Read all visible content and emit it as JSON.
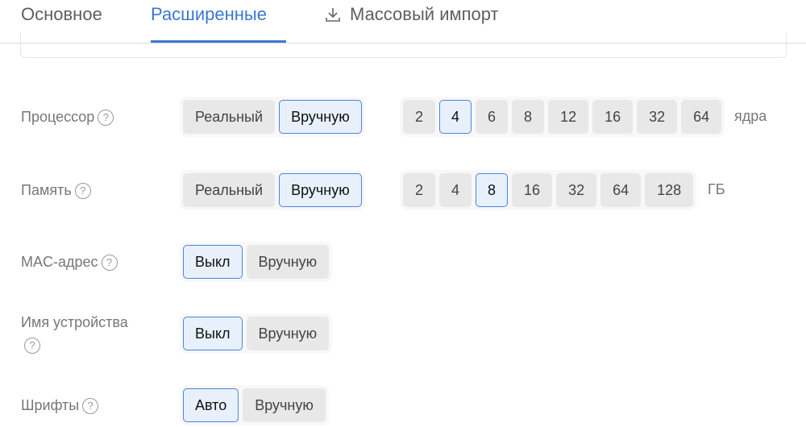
{
  "tabs": [
    {
      "label": "Основное"
    },
    {
      "label": "Расширенные",
      "active": true
    },
    {
      "label": "Массовый импорт",
      "icon": "download-icon"
    }
  ],
  "colors": {
    "accent": "#3a78d0",
    "selected_bg": "#e8f0fb",
    "option_bg": "#e8e8e8"
  },
  "rows": [
    {
      "id": "cpu",
      "label": "Процессор",
      "help": "?",
      "mode": {
        "options": [
          "Реальный",
          "Вручную"
        ],
        "selected": "Вручную"
      },
      "values": {
        "options": [
          "2",
          "4",
          "6",
          "8",
          "12",
          "16",
          "32",
          "64"
        ],
        "selected": "4",
        "unit": "ядра"
      }
    },
    {
      "id": "memory",
      "label": "Память",
      "help": "?",
      "mode": {
        "options": [
          "Реальный",
          "Вручную"
        ],
        "selected": "Вручную"
      },
      "values": {
        "options": [
          "2",
          "4",
          "8",
          "16",
          "32",
          "64",
          "128"
        ],
        "selected": "8",
        "unit": "ГБ"
      }
    },
    {
      "id": "mac",
      "label": "MAC-адрес",
      "help": "?",
      "mode": {
        "options": [
          "Выкл",
          "Вручную"
        ],
        "selected": "Выкл"
      }
    },
    {
      "id": "device-name",
      "label": "Имя устройства",
      "help": "?",
      "mode": {
        "options": [
          "Выкл",
          "Вручную"
        ],
        "selected": "Выкл"
      }
    },
    {
      "id": "fonts",
      "label": "Шрифты",
      "help": "?",
      "mode": {
        "options": [
          "Авто",
          "Вручную"
        ],
        "selected": "Авто"
      }
    }
  ]
}
